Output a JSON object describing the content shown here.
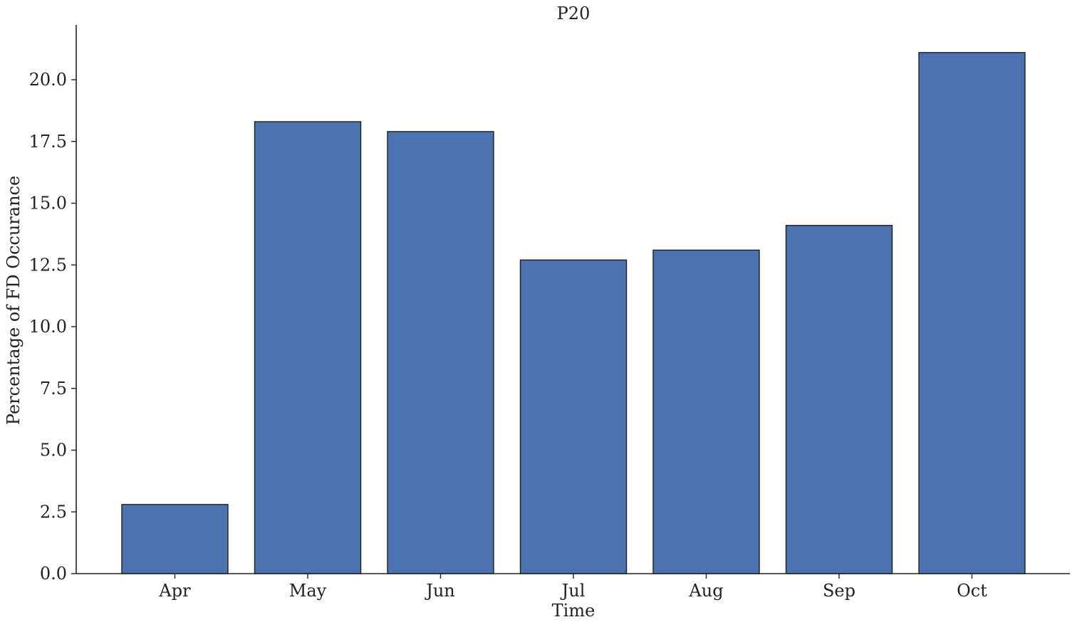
{
  "chart_data": {
    "type": "bar",
    "title": "P20",
    "xlabel": "Time",
    "ylabel": "Percentage of FD Occurance",
    "categories": [
      "Apr",
      "May",
      "Jun",
      "Jul",
      "Aug",
      "Sep",
      "Oct"
    ],
    "values": [
      2.8,
      18.3,
      17.9,
      12.7,
      13.1,
      14.1,
      21.1
    ],
    "ylim": [
      0,
      22.2
    ],
    "yticks": [
      0.0,
      2.5,
      5.0,
      7.5,
      10.0,
      12.5,
      15.0,
      17.5,
      20.0
    ],
    "ytick_labels": [
      "0.0",
      "2.5",
      "5.0",
      "7.5",
      "10.0",
      "12.5",
      "15.0",
      "17.5",
      "20.0"
    ],
    "grid": false,
    "bar_color": "#4c72b0",
    "bar_edge_color": "#1f1f1f"
  }
}
